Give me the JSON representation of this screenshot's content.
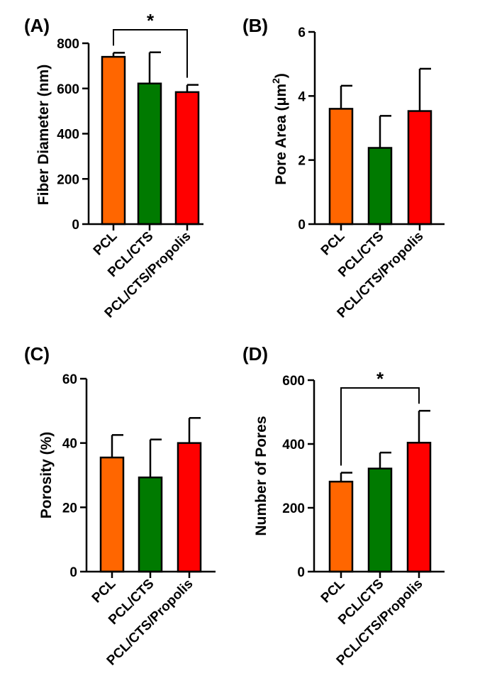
{
  "chart_data": [
    {
      "panel_label": "(A)",
      "type": "bar",
      "categories": [
        "PCL",
        "PCL/CTS",
        "PCL/CTS/Propolis"
      ],
      "values": [
        740,
        622,
        584
      ],
      "errors": [
        18,
        138,
        32
      ],
      "ylabel": "Fiber Diameter (nm)",
      "ylabel_superscript": "",
      "ylabel_suffix": "",
      "ylim": [
        0,
        800
      ],
      "yticks": [
        0,
        200,
        400,
        600,
        800
      ],
      "ytick_labels": [
        "0",
        "200",
        "400",
        "600",
        "800"
      ],
      "significance": [
        {
          "from": 0,
          "to": 2,
          "label": "*"
        }
      ]
    },
    {
      "panel_label": "(B)",
      "type": "bar",
      "categories": [
        "PCL",
        "PCL/CTS",
        "PCL/CTS/Propolis"
      ],
      "values": [
        3.6,
        2.38,
        3.53
      ],
      "errors": [
        0.72,
        1.0,
        1.32
      ],
      "ylabel": "Pore Area (μm",
      "ylabel_superscript": "2",
      "ylabel_suffix": ")",
      "ylim": [
        0,
        6
      ],
      "yticks": [
        0,
        2,
        4,
        6
      ],
      "ytick_labels": [
        "0",
        "2",
        "4",
        "6"
      ],
      "significance": []
    },
    {
      "panel_label": "(C)",
      "type": "bar",
      "categories": [
        "PCL",
        "PCL/CTS",
        "PCL/CTS/Propolis"
      ],
      "values": [
        35.5,
        29.3,
        40.0
      ],
      "errors": [
        7.0,
        11.8,
        7.8
      ],
      "ylabel": "Porosity (%)",
      "ylabel_superscript": "",
      "ylabel_suffix": "",
      "ylim": [
        0,
        60
      ],
      "yticks": [
        0,
        20,
        40,
        60
      ],
      "ytick_labels": [
        "0",
        "20",
        "40",
        "60"
      ],
      "significance": []
    },
    {
      "panel_label": "(D)",
      "type": "bar",
      "categories": [
        "PCL",
        "PCL/CTS",
        "PCL/CTS/Propolis"
      ],
      "values": [
        282,
        323,
        404
      ],
      "errors": [
        28,
        50,
        100
      ],
      "ylabel": "Number of Pores",
      "ylabel_superscript": "",
      "ylabel_suffix": "",
      "ylim": [
        0,
        600
      ],
      "yticks": [
        0,
        200,
        400,
        600
      ],
      "ytick_labels": [
        "0",
        "200",
        "400",
        "600"
      ],
      "significance": [
        {
          "from": 0,
          "to": 2,
          "label": "*"
        }
      ]
    }
  ],
  "colors": {
    "series": [
      "#ff6600",
      "#007a00",
      "#ff0000"
    ],
    "axis": "#000000"
  }
}
